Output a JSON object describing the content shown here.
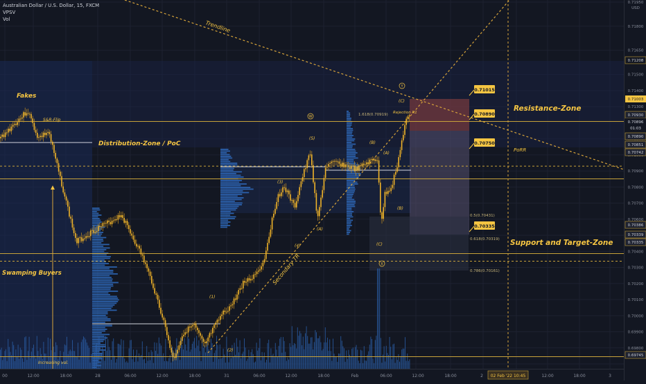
{
  "header": {
    "symbol": "Australian Dollar / U.S. Dollar, 15, FXCM",
    "indicator_1": "VPSV",
    "indicator_2": "Vol"
  },
  "colors": {
    "background": "#131722",
    "candle": "#f0b429",
    "candle_wick": "#c89020",
    "annotation": "#f5c542",
    "volume_bar": "#2a5ea8",
    "profile_bar": "#2f6cc0",
    "distribution_box": "#1c2a4d",
    "resistance_box": "#7a3a3a",
    "target_box": "#4a4a66",
    "level_line": "#c9a33a",
    "axis_text": "#8a8f9c"
  },
  "chart_data": {
    "type": "candlestick",
    "symbol": "AUDUSD",
    "timeframe": "15",
    "price_axis": {
      "unit": "USD",
      "ylim": [
        0.697,
        0.7195
      ],
      "ticks": [
        "0.71950",
        "0.71800",
        "0.71650",
        "0.71500",
        "0.71400",
        "0.71300",
        "0.71200",
        "0.71100",
        "0.71000",
        "0.70900",
        "0.70800",
        "0.70700",
        "0.70600",
        "0.70500",
        "0.70400",
        "0.70300",
        "0.70200",
        "0.70100",
        "0.70000",
        "0.69900",
        "0.69800",
        "0.69700"
      ],
      "shown_ticks": [
        "0.71950",
        "0.71800",
        "0.71650",
        "0.71500",
        "0.71400",
        "0.71300",
        "0.71200",
        "0.71100",
        "0.71000",
        "0.70900",
        "0.70800",
        "0.70700",
        "0.70600",
        "0.70500",
        "0.70400",
        "0.70300",
        "0.70200",
        "0.70100",
        "0.70000",
        "0.69900",
        "0.69800"
      ],
      "unit_label": "USD"
    },
    "price_tags": [
      {
        "value": "0.71208",
        "style": "outline"
      },
      {
        "value": "0.71003",
        "style": "gold"
      },
      {
        "value": "0.70930",
        "style": "dark"
      },
      {
        "value": "0.70896",
        "style": "plain"
      },
      {
        "value": "01:03",
        "style": "plain"
      },
      {
        "value": "0.70890",
        "style": "dark"
      },
      {
        "value": "0.70851",
        "style": "dark"
      },
      {
        "value": "0.70742",
        "style": "dark"
      },
      {
        "value": "0.70386",
        "style": "dark"
      },
      {
        "value": "0.70339",
        "style": "dark"
      },
      {
        "value": "0.70335",
        "style": "dark"
      },
      {
        "value": "0.69745",
        "style": "dark"
      }
    ],
    "time_axis": [
      "00",
      "12:00",
      "18:00",
      "28",
      "06:00",
      "12:00",
      "18:00",
      "31",
      "06:00",
      "12:00",
      "18:00",
      "Feb",
      "06:00",
      "12:00",
      "18:00",
      "2",
      "18:00",
      "12:00",
      "18:00",
      "3"
    ],
    "time_cursor_label": "02 Feb '22 10:45",
    "levels": [
      {
        "price": 0.71208,
        "label": ""
      },
      {
        "price": 0.7093,
        "label": ""
      },
      {
        "price": 0.70851,
        "label": ""
      },
      {
        "price": 0.70386,
        "label": ""
      },
      {
        "price": 0.70339,
        "label": ""
      },
      {
        "price": 0.69745,
        "label": ""
      }
    ],
    "price_boxes": [
      {
        "value": "0.71015"
      },
      {
        "value": "0.70890"
      },
      {
        "value": "0.70750"
      },
      {
        "value": "0.70335"
      }
    ],
    "fib_labels": [
      "1.618(0.70919)",
      "0.5(0.70431)",
      "0.618(0.70319)",
      "0.786(0.70161)"
    ],
    "annotations": {
      "fakes": "Fakes",
      "sr_flip": "S&R-Flip",
      "distribution": "Distribution-Zone / PoC",
      "swamping": "Swamping Buyers",
      "increasing_vol": "Increasing vol.",
      "trendline": "Trendline",
      "secondary_tr": "Secondary TR",
      "resistance": "Resistance-Zone",
      "porr": "PoRR",
      "support": "Support and Target-Zone",
      "rejection": "Rejection R1",
      "wave_1": "(1)",
      "wave_2": "(2)",
      "wave_3": "(3)",
      "wave_4": "(4)",
      "wave_5": "(5)",
      "wave_a": "(A)",
      "wave_b": "(B)",
      "wave_a2": "(A)",
      "wave_b2": "(B)",
      "wave_c": "(C)",
      "wave_c_top": "(C)",
      "circle_y": "Y",
      "circle_w": "W",
      "circle_x": "X"
    }
  }
}
